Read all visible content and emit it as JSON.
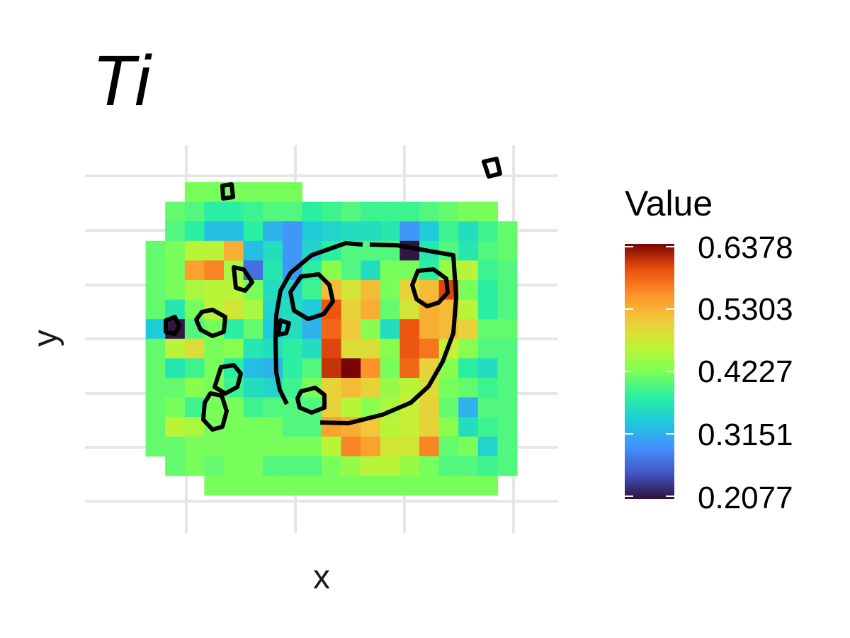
{
  "chart_data": {
    "type": "heatmap",
    "title": "Ti",
    "xlabel": "x",
    "ylabel": "y",
    "x_ticks_shown": false,
    "y_ticks_shown": false,
    "grid": true,
    "legend": {
      "title": "Value",
      "placement": "right",
      "colormap": "turbo",
      "range": [
        0.2077,
        0.6378
      ],
      "ticks": [
        "0.6378",
        "0.5303",
        "0.4227",
        "0.3151",
        "0.2077"
      ]
    },
    "grid_size": {
      "cols": 20,
      "rows": 16
    },
    "value_range": [
      0.2077,
      0.6378
    ],
    "rows": [
      [
        null,
        null,
        null,
        0.42,
        0.42,
        0.42,
        0.42,
        0.42,
        0.42,
        null,
        null,
        null,
        null,
        null,
        null,
        null,
        null,
        null,
        null,
        null
      ],
      [
        null,
        null,
        0.41,
        0.4,
        0.38,
        0.38,
        0.39,
        0.4,
        0.4,
        0.38,
        0.39,
        0.4,
        0.39,
        0.39,
        0.39,
        0.4,
        0.41,
        0.42,
        0.42,
        null
      ],
      [
        null,
        null,
        0.4,
        0.38,
        0.33,
        0.33,
        0.38,
        0.32,
        0.3,
        0.34,
        0.35,
        0.36,
        0.36,
        0.37,
        0.3,
        0.34,
        0.39,
        0.36,
        0.39,
        0.41
      ],
      [
        null,
        0.41,
        0.42,
        0.46,
        0.46,
        0.53,
        0.33,
        0.36,
        0.3,
        0.35,
        0.38,
        0.4,
        0.4,
        0.4,
        0.21,
        0.37,
        0.4,
        0.37,
        0.4,
        0.41
      ],
      [
        null,
        0.41,
        0.42,
        0.54,
        0.56,
        0.45,
        0.27,
        0.37,
        0.3,
        0.38,
        0.43,
        0.4,
        0.36,
        0.42,
        0.42,
        0.38,
        0.44,
        0.46,
        0.39,
        0.4
      ],
      [
        null,
        0.41,
        0.42,
        0.45,
        0.46,
        0.46,
        0.42,
        0.36,
        0.35,
        0.39,
        0.52,
        0.48,
        0.52,
        0.42,
        0.5,
        0.52,
        0.6,
        0.42,
        0.38,
        0.4
      ],
      [
        null,
        0.41,
        0.37,
        0.42,
        0.46,
        0.48,
        0.45,
        0.35,
        0.36,
        0.34,
        0.59,
        0.5,
        0.53,
        0.41,
        0.48,
        0.53,
        0.52,
        0.46,
        0.38,
        0.4
      ],
      [
        null,
        0.34,
        0.21,
        0.4,
        0.42,
        0.38,
        0.41,
        0.34,
        0.36,
        0.32,
        0.58,
        0.51,
        0.43,
        0.36,
        0.59,
        0.53,
        0.52,
        0.5,
        0.41,
        0.41
      ],
      [
        null,
        0.41,
        0.46,
        0.49,
        0.42,
        0.43,
        0.37,
        0.36,
        0.38,
        0.36,
        0.6,
        0.49,
        0.49,
        0.43,
        0.59,
        0.57,
        0.47,
        0.43,
        0.4,
        0.4
      ],
      [
        null,
        0.41,
        0.37,
        0.39,
        0.42,
        0.38,
        0.33,
        0.32,
        0.38,
        0.4,
        0.61,
        0.64,
        0.55,
        0.42,
        0.58,
        0.5,
        0.43,
        0.38,
        0.36,
        0.4
      ],
      [
        null,
        0.41,
        0.41,
        0.43,
        0.42,
        0.39,
        0.36,
        0.35,
        0.39,
        0.42,
        0.5,
        0.52,
        0.5,
        0.44,
        0.46,
        0.49,
        0.42,
        0.41,
        0.39,
        0.4
      ],
      [
        null,
        0.41,
        0.42,
        0.39,
        0.42,
        0.42,
        0.39,
        0.4,
        0.4,
        0.4,
        0.5,
        0.46,
        0.43,
        0.45,
        0.47,
        0.5,
        0.41,
        0.32,
        0.4,
        0.4
      ],
      [
        null,
        0.41,
        0.46,
        0.45,
        0.42,
        0.42,
        0.42,
        0.42,
        0.4,
        0.4,
        0.54,
        0.53,
        0.51,
        0.46,
        0.47,
        0.5,
        0.43,
        0.36,
        0.39,
        0.4
      ],
      [
        null,
        0.41,
        0.41,
        0.42,
        0.42,
        0.42,
        0.42,
        0.42,
        0.42,
        0.42,
        0.46,
        0.56,
        0.54,
        0.48,
        0.48,
        0.56,
        0.41,
        0.42,
        0.35,
        0.4
      ],
      [
        null,
        null,
        0.41,
        0.42,
        0.41,
        0.42,
        0.42,
        0.4,
        0.4,
        0.4,
        0.42,
        0.44,
        0.46,
        0.46,
        0.44,
        0.42,
        0.4,
        0.4,
        0.39,
        0.4
      ],
      [
        null,
        null,
        null,
        null,
        0.42,
        0.42,
        0.42,
        0.42,
        0.42,
        0.42,
        0.42,
        0.42,
        0.42,
        0.42,
        0.42,
        0.42,
        0.42,
        0.42,
        0.42,
        null
      ]
    ],
    "colors": {
      "grid": "#e6e6e6",
      "contour": "#000000",
      "background": "#ffffff"
    }
  }
}
